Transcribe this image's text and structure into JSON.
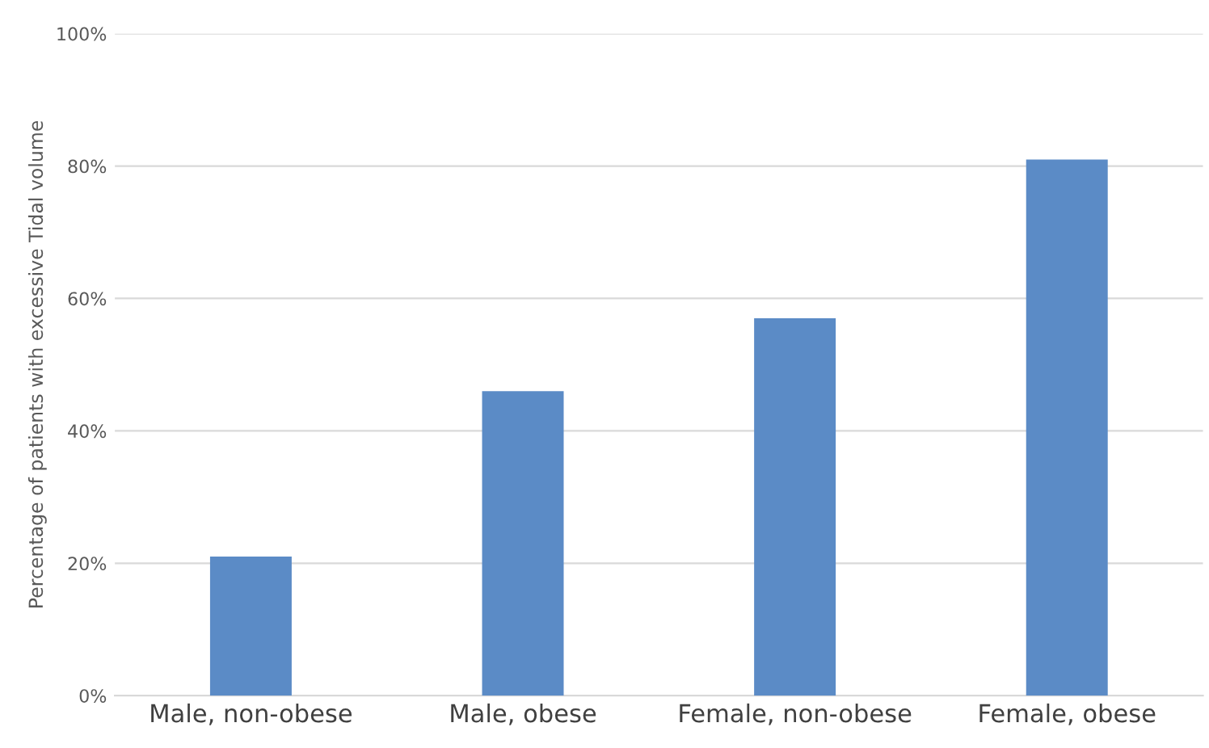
{
  "chart_data": {
    "type": "bar",
    "ylabel": "Percentage of patients with excessive Tidal volume",
    "categories": [
      "Male, non-obese",
      "Male, obese",
      "Female, non-obese",
      "Female, obese"
    ],
    "values": [
      21,
      46,
      57,
      81
    ],
    "color": "#5b8bc6",
    "ylim": [
      0,
      100
    ],
    "yticks": [
      {
        "value": 0,
        "label": "0%"
      },
      {
        "value": 20,
        "label": "20%"
      },
      {
        "value": 40,
        "label": "40%"
      },
      {
        "value": 60,
        "label": "60%"
      },
      {
        "value": 80,
        "label": "80%"
      },
      {
        "value": 100,
        "label": "100%"
      }
    ],
    "grid": "y",
    "legend": false
  }
}
